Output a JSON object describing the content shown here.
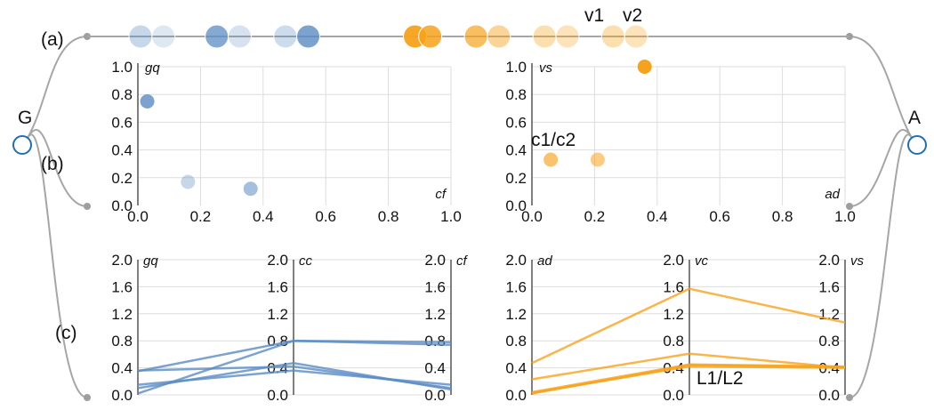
{
  "labels": {
    "left_node": "G",
    "right_node": "A",
    "row_a": "(a)",
    "row_b": "(b)",
    "row_c": "(c)"
  },
  "annotations": {
    "v1": "v1",
    "v2": "v2",
    "c1c2": "c1/c2",
    "l1l2": "L1/L2"
  },
  "colors": {
    "blue": "#5b8cc4",
    "orange": "#f7a21b",
    "connector": "#a6a6a6",
    "node_ring": "#1f6fb5",
    "grid": "#dddddd"
  },
  "chart_data": [
    {
      "id": "row-a-strip",
      "type": "scatter",
      "title": "",
      "series": [
        {
          "color": "blue",
          "x": [
            0.07,
            0.1,
            0.17,
            0.2,
            0.26,
            0.29
          ],
          "opacity": [
            0.35,
            0.2,
            0.75,
            0.25,
            0.3,
            0.8
          ]
        },
        {
          "color": "orange",
          "x": [
            0.43,
            0.45,
            0.51,
            0.54,
            0.6,
            0.63,
            0.69,
            0.72
          ],
          "opacity": [
            0.95,
            0.85,
            0.7,
            0.45,
            0.35,
            0.3,
            0.35,
            0.3
          ]
        }
      ]
    },
    {
      "id": "row-b-left",
      "type": "scatter",
      "xlabel": "cf",
      "ylabel": "gq",
      "xlim": [
        0,
        1
      ],
      "ylim": [
        0,
        1
      ],
      "xticks": [
        "0.0",
        "0.2",
        "0.4",
        "0.6",
        "0.8",
        "1.0"
      ],
      "yticks": [
        "0.0",
        "0.2",
        "0.4",
        "0.6",
        "0.8",
        "1.0"
      ],
      "grid": true,
      "points": [
        {
          "x": 0.03,
          "y": 0.75,
          "opacity": 0.8
        },
        {
          "x": 0.16,
          "y": 0.17,
          "opacity": 0.35
        },
        {
          "x": 0.36,
          "y": 0.12,
          "opacity": 0.55
        }
      ],
      "color": "blue"
    },
    {
      "id": "row-b-right",
      "type": "scatter",
      "xlabel": "ad",
      "ylabel": "vs",
      "xlim": [
        0,
        1
      ],
      "ylim": [
        0,
        1
      ],
      "xticks": [
        "0.0",
        "0.2",
        "0.4",
        "0.6",
        "0.8",
        "1.0"
      ],
      "yticks": [
        "0.0",
        "0.2",
        "0.4",
        "0.6",
        "0.8",
        "1.0"
      ],
      "grid": true,
      "points": [
        {
          "x": 0.36,
          "y": 1.0,
          "opacity": 1.0
        },
        {
          "x": 0.06,
          "y": 0.33,
          "opacity": 0.65
        },
        {
          "x": 0.21,
          "y": 0.33,
          "opacity": 0.55
        }
      ],
      "color": "orange"
    },
    {
      "id": "row-c-left",
      "type": "line",
      "axes": [
        "gq",
        "cc",
        "cf"
      ],
      "ylim": [
        0,
        2
      ],
      "yticks": [
        "0.0",
        "0.4",
        "0.8",
        "1.2",
        "1.6",
        "2.0"
      ],
      "lines": [
        [
          0.36,
          0.42,
          0.1
        ],
        [
          0.15,
          0.36,
          0.15
        ],
        [
          0.02,
          0.8,
          0.78
        ],
        [
          0.35,
          0.8,
          0.74
        ],
        [
          0.1,
          0.47,
          0.08
        ]
      ],
      "color": "blue"
    },
    {
      "id": "row-c-right",
      "type": "line",
      "axes": [
        "ad",
        "vc",
        "vs"
      ],
      "ylim": [
        0,
        2
      ],
      "yticks": [
        "0.0",
        "0.4",
        "0.8",
        "1.2",
        "1.6",
        "2.0"
      ],
      "lines": [
        [
          0.47,
          1.57,
          1.07
        ],
        [
          0.23,
          0.61,
          0.4
        ],
        [
          0.04,
          0.45,
          0.42
        ],
        [
          0.03,
          0.42,
          0.4
        ],
        [
          0.02,
          0.44,
          0.41
        ]
      ],
      "color": "orange"
    }
  ]
}
